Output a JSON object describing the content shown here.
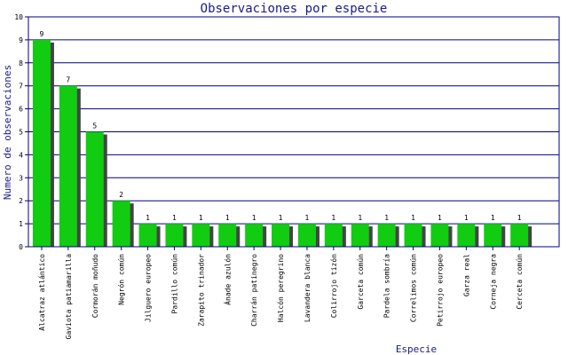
{
  "chart_data": {
    "type": "bar",
    "title": "Observaciones por especie",
    "xlabel": "Especie",
    "ylabel": "Numero de observaciones",
    "ylim": [
      0,
      10
    ],
    "yticks": [
      0,
      1,
      2,
      3,
      4,
      5,
      6,
      7,
      8,
      9,
      10
    ],
    "grid": true,
    "categories": [
      "Alcatraz atlántico",
      "Gaviota patiamarilla",
      "Cormorán moñudo",
      "Negrón común",
      "Jilguero europeo",
      "Pardillo común",
      "Zarapito trinador",
      "Ánade azulón",
      "Charrán patinegro",
      "Halcón peregrino",
      "Lavandera blanca",
      "Colirrojo tizón",
      "Garceta común",
      "Pardela sombría",
      "Correlimos común",
      "Petirrojo europeo",
      "Garza real",
      "Corneja negra",
      "Cerceta común"
    ],
    "values": [
      9,
      7,
      5,
      2,
      1,
      1,
      1,
      1,
      1,
      1,
      1,
      1,
      1,
      1,
      1,
      1,
      1,
      1,
      1
    ],
    "colors": {
      "bar": "#11cc11",
      "shadow": "#444444",
      "grid": "#000080",
      "axis": "#000080",
      "text": "#1a1a8c"
    }
  }
}
